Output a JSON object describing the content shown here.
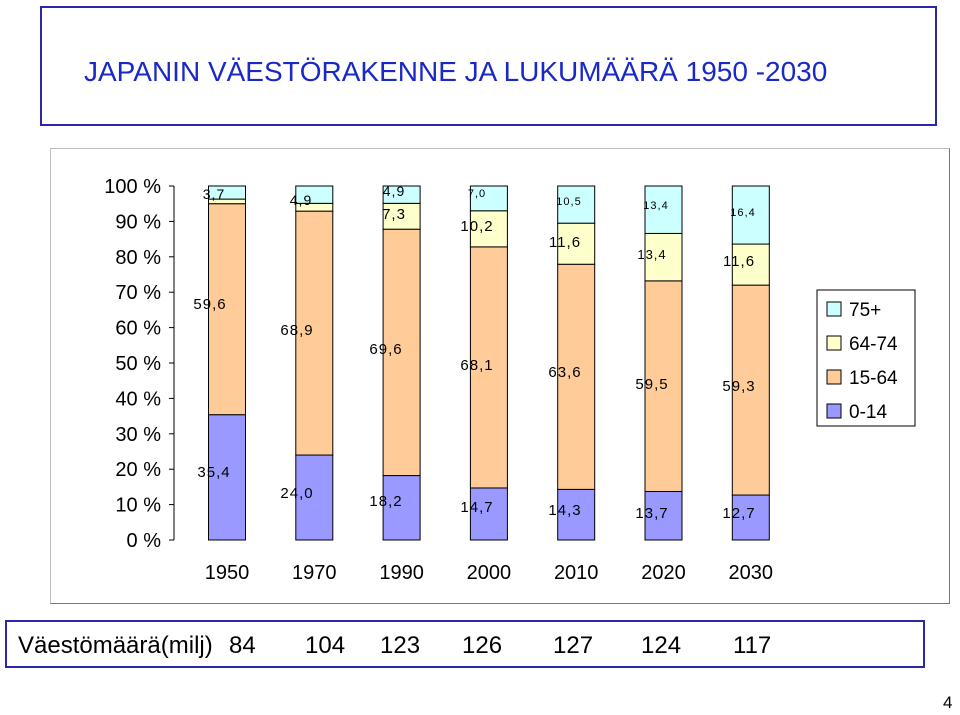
{
  "title": "JAPANIN VÄESTÖRAKENNE JA LUKUMÄÄRÄ  1950 -2030",
  "chart_data": {
    "type": "bar",
    "stacked": true,
    "normalized_percent": true,
    "categories": [
      "1950",
      "1970",
      "1990",
      "2000",
      "2010",
      "2020",
      "2030"
    ],
    "series": [
      {
        "name": "0-14",
        "color": "#9999ff",
        "values": [
          35.4,
          24.0,
          18.2,
          14.7,
          14.3,
          13.7,
          12.7
        ],
        "labels": [
          "35,4",
          "24,0",
          "18,2",
          "14,7",
          "14,3",
          "13,7",
          "12,7"
        ]
      },
      {
        "name": "15-64",
        "color": "#ffcc99",
        "values": [
          59.6,
          68.9,
          69.6,
          68.1,
          63.6,
          59.5,
          59.3
        ],
        "labels": [
          "59,6",
          "68,9",
          "69,6",
          "68,1",
          "63,6",
          "59,5",
          "59,3"
        ]
      },
      {
        "name": "64-74",
        "color": "#ffffcc",
        "values": [
          1.3,
          2.2,
          7.3,
          10.2,
          11.6,
          13.4,
          11.6
        ],
        "labels": [
          "",
          "",
          "7,3",
          "10,2",
          "11,6",
          "13,4",
          "11,6"
        ]
      },
      {
        "name": "75+",
        "color": "#ccffff",
        "values": [
          3.7,
          4.9,
          4.9,
          7.0,
          10.5,
          13.4,
          16.4
        ],
        "labels": [
          "3,7",
          "4,9",
          "4,9",
          "7,0",
          "10,5",
          "13,4",
          "16,4"
        ]
      }
    ],
    "legend_order": [
      "75+",
      "64-74",
      "15-64",
      "0-14"
    ],
    "yticks": [
      "100 %",
      "90 %",
      "80 %",
      "70 %",
      "60 %",
      "50 %",
      "40 %",
      "30 %",
      "20 %",
      "10 %",
      "0 %"
    ],
    "ylim": [
      0,
      100
    ],
    "grid": false,
    "legend_position": "right"
  },
  "population": {
    "label": "Väestömäärä(milj)",
    "values": [
      "84",
      "104",
      "123",
      "126",
      "127",
      "124",
      "117"
    ]
  },
  "page_number": "4"
}
